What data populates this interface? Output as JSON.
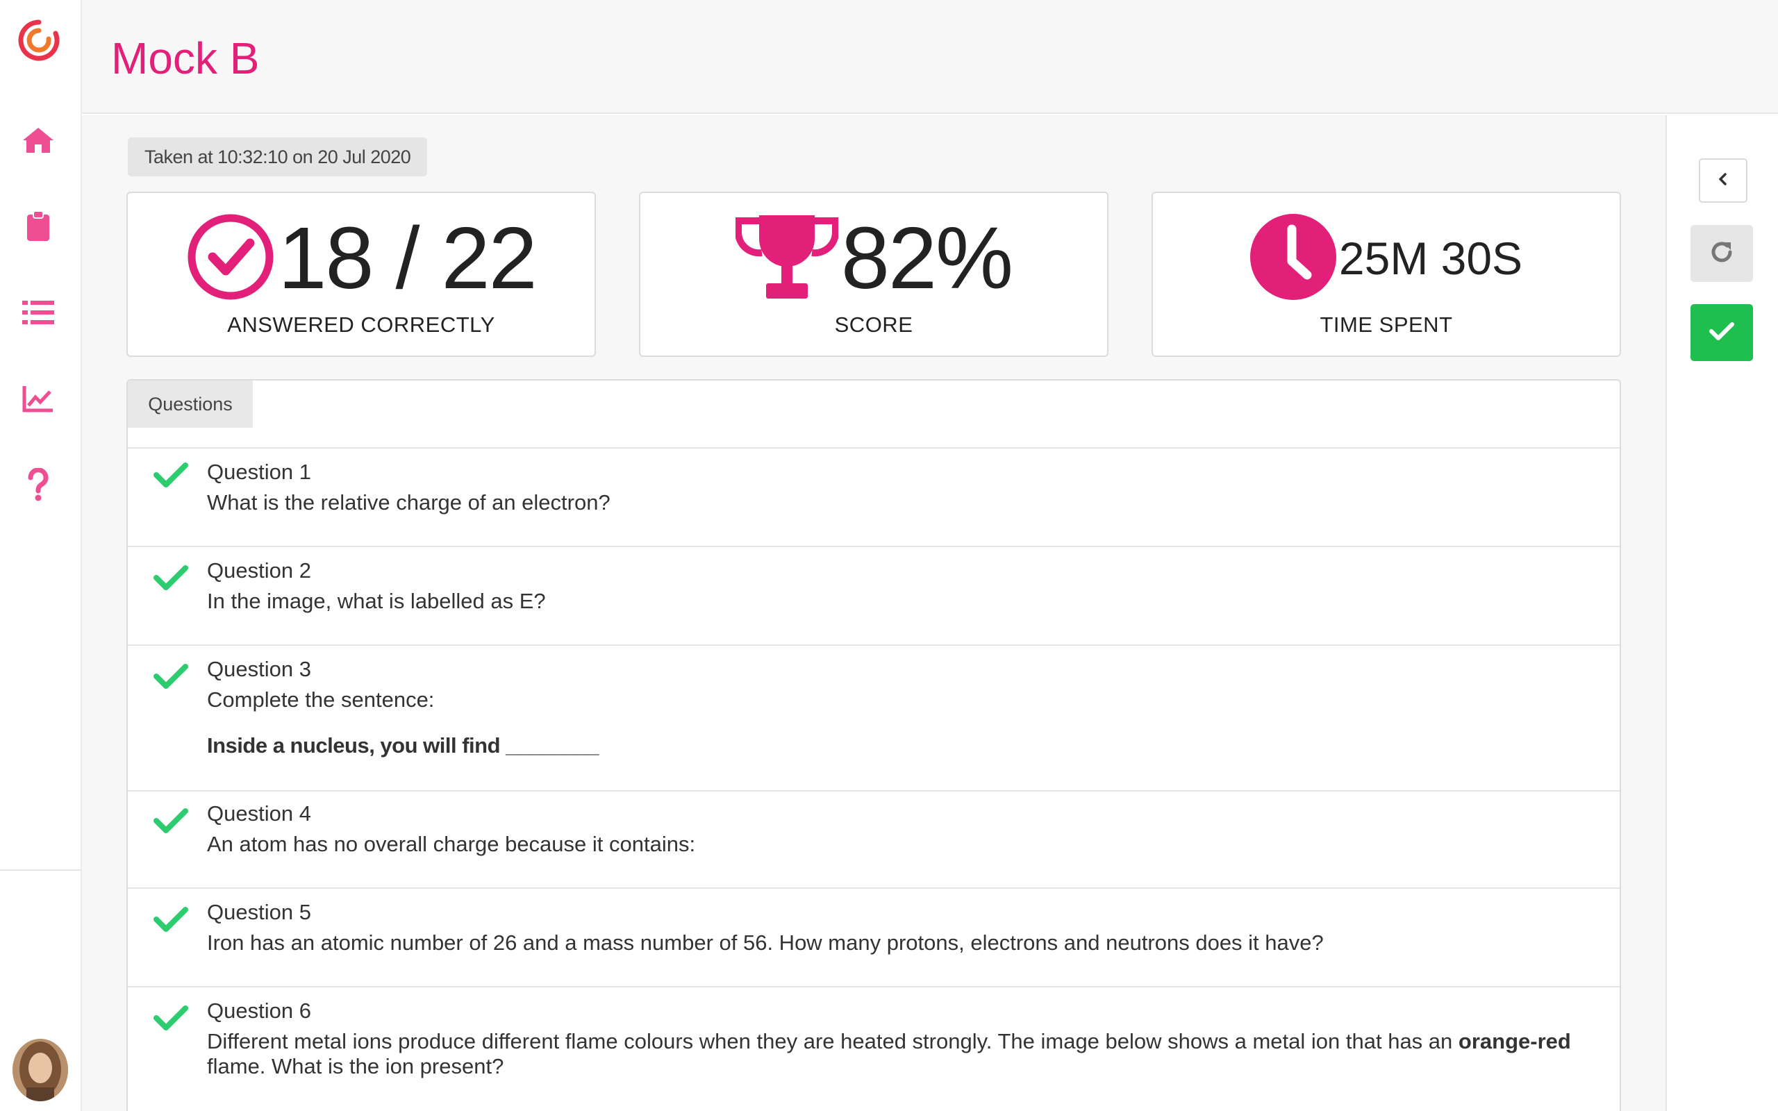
{
  "header": {
    "title": "Mock B"
  },
  "sidebar": {
    "items": [
      {
        "name": "home",
        "icon": "home-icon"
      },
      {
        "name": "clipboard",
        "icon": "clipboard-icon"
      },
      {
        "name": "list",
        "icon": "list-icon"
      },
      {
        "name": "analytics",
        "icon": "line-chart-icon"
      },
      {
        "name": "help",
        "icon": "question-icon"
      }
    ],
    "accent_color": "#ee4f93"
  },
  "summary": {
    "taken_at": "Taken at 10:32:10 on 20 Jul 2020",
    "correct": {
      "value": "18 / 22",
      "label": "ANSWERED CORRECTLY",
      "icon": "check-circle-icon"
    },
    "score": {
      "value": "82%",
      "label": "SCORE",
      "icon": "trophy-icon"
    },
    "time": {
      "value": "25M 30S",
      "label": "TIME SPENT",
      "icon": "clock-icon"
    }
  },
  "questions": {
    "tab_label": "Questions",
    "items": [
      {
        "number": "Question 1",
        "text": "What is the relative charge of an electron?",
        "status": "correct"
      },
      {
        "number": "Question 2",
        "text": "In the image, what is labelled as E?",
        "status": "correct"
      },
      {
        "number": "Question 3",
        "text": "Complete the sentence:",
        "extra": "Inside a nucleus, you will find ________",
        "status": "correct"
      },
      {
        "number": "Question 4",
        "text": "An atom has no overall charge because it contains:",
        "status": "correct"
      },
      {
        "number": "Question 5",
        "text": "Iron has an atomic number of 26 and a mass number of 56. How many protons, electrons and neutrons does it have?",
        "status": "correct"
      },
      {
        "number": "Question 6",
        "text_before": "Different metal ions produce different flame colours when they are heated strongly. The image below shows a metal ion that has an ",
        "text_bold": "orange-red",
        "text_after": " flame. What is the ion present?",
        "status": "correct"
      }
    ]
  },
  "colors": {
    "brand": "#e21f79",
    "success": "#1ebe4f",
    "check": "#2ecc71"
  }
}
